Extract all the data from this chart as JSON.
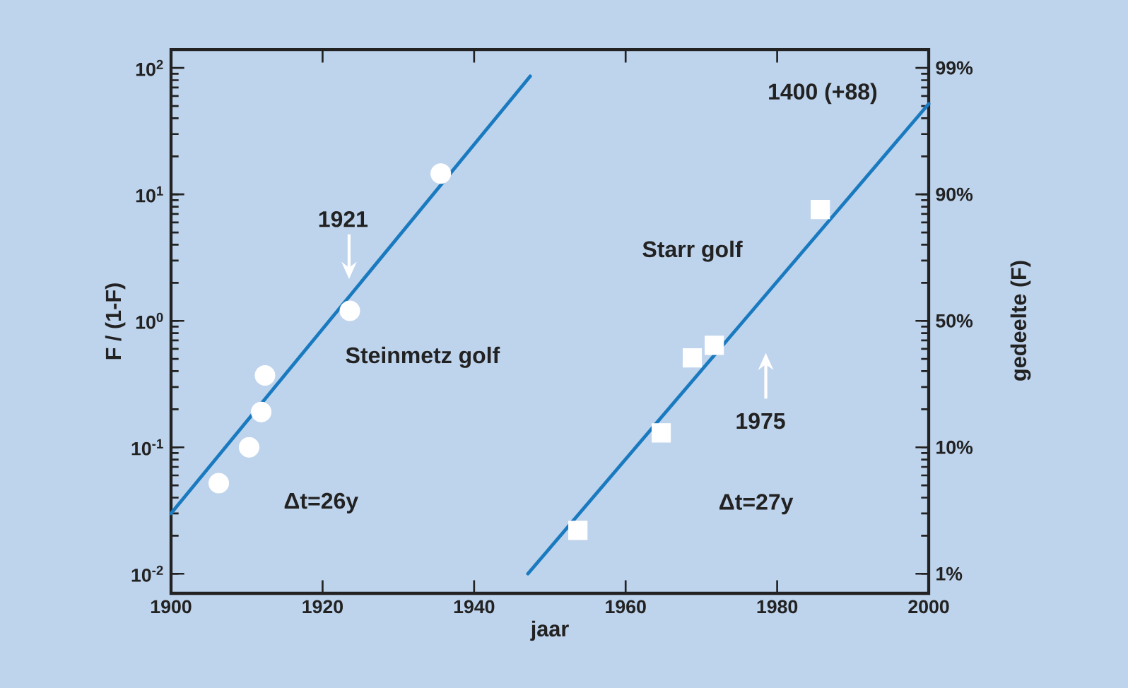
{
  "chart_data": {
    "type": "scatter",
    "xlabel": "jaar",
    "ylabel": "F / (1-F)",
    "y2label": "gedeelte (F)",
    "log": "y",
    "xlim": [
      1900,
      2000
    ],
    "xticks": [
      1900,
      1920,
      1940,
      1960,
      1980,
      2000
    ],
    "ylim": [
      0.007,
      140
    ],
    "yticks": [
      {
        "value": 0.01,
        "label": "10$^{-2}$"
      },
      {
        "value": 0.1,
        "label": "10$^{-1}$"
      },
      {
        "value": 1,
        "label": "10$^{0}$"
      },
      {
        "value": 10,
        "label": "10$^{1}$"
      },
      {
        "value": 100,
        "label": "10$^{2}$"
      }
    ],
    "series": [
      {
        "marker": "circle",
        "color": "#ffffff",
        "x": [
          1906.3,
          1910.3,
          1911.9,
          1912.4,
          1923.6,
          1935.6
        ],
        "values": [
          0.052,
          0.1,
          0.19,
          0.37,
          1.2,
          14.6
        ]
      },
      {
        "marker": "square",
        "color": "#ffffff",
        "x": [
          1953.7,
          1964.7,
          1968.8,
          1971.7,
          1985.7
        ],
        "values": [
          0.022,
          0.13,
          0.51,
          0.64,
          7.6
        ]
      },
      {
        "type": "line",
        "marker": "none",
        "color": "#1a7abf",
        "x": [
          1900,
          1947.4
        ],
        "values": [
          0.03,
          86
        ]
      },
      {
        "type": "line",
        "marker": "none",
        "color": "#1a7abf",
        "x": [
          1947.1,
          2000
        ],
        "values": [
          0.01,
          52
        ]
      }
    ],
    "annotations": [
      "1921",
      "Steinmetz golf",
      "Δt=26y",
      "Starr golf",
      "1975",
      "Δt=27y",
      "1400 (+88)",
      "1%",
      "10%",
      "50%",
      "90%",
      "99%"
    ]
  }
}
